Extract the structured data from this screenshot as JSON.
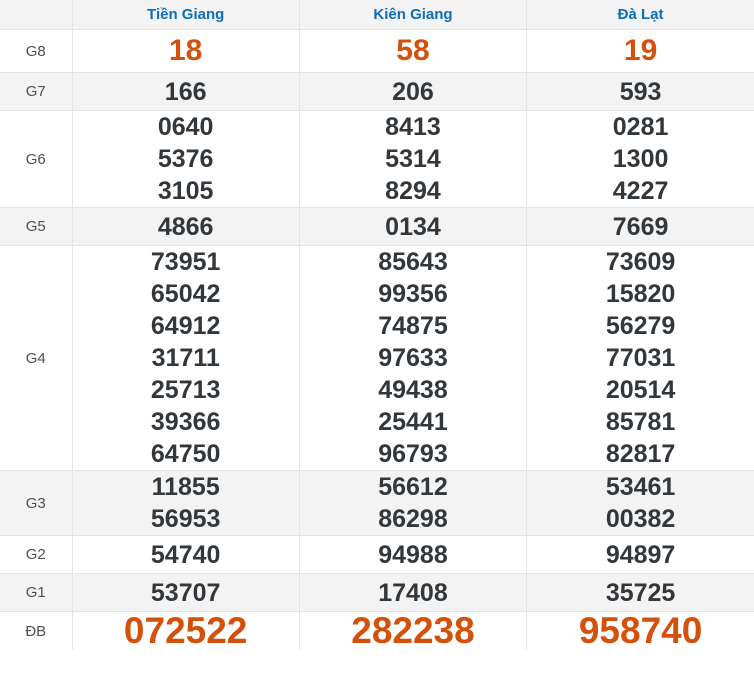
{
  "table": {
    "columns": [
      {
        "label": "Tiền Giang"
      },
      {
        "label": "Kiên Giang"
      },
      {
        "label": "Đà Lạt"
      }
    ],
    "rows": [
      {
        "label": "G8",
        "values": [
          [
            "18"
          ],
          [
            "58"
          ],
          [
            "19"
          ]
        ]
      },
      {
        "label": "G7",
        "values": [
          [
            "166"
          ],
          [
            "206"
          ],
          [
            "593"
          ]
        ]
      },
      {
        "label": "G6",
        "values": [
          [
            "0640",
            "5376",
            "3105"
          ],
          [
            "8413",
            "5314",
            "8294"
          ],
          [
            "0281",
            "1300",
            "4227"
          ]
        ]
      },
      {
        "label": "G5",
        "values": [
          [
            "4866"
          ],
          [
            "0134"
          ],
          [
            "7669"
          ]
        ]
      },
      {
        "label": "G4",
        "values": [
          [
            "73951",
            "65042",
            "64912",
            "31711",
            "25713",
            "39366",
            "64750"
          ],
          [
            "85643",
            "99356",
            "74875",
            "97633",
            "49438",
            "25441",
            "96793"
          ],
          [
            "73609",
            "15820",
            "56279",
            "77031",
            "20514",
            "85781",
            "82817"
          ]
        ]
      },
      {
        "label": "G3",
        "values": [
          [
            "11855",
            "56953"
          ],
          [
            "56612",
            "86298"
          ],
          [
            "53461",
            "00382"
          ]
        ]
      },
      {
        "label": "G2",
        "values": [
          [
            "54740"
          ],
          [
            "94988"
          ],
          [
            "94897"
          ]
        ]
      },
      {
        "label": "G1",
        "values": [
          [
            "53707"
          ],
          [
            "17408"
          ],
          [
            "35725"
          ]
        ]
      },
      {
        "label": "ĐB",
        "values": [
          [
            "072522"
          ],
          [
            "282238"
          ],
          [
            "958740"
          ]
        ]
      }
    ]
  },
  "colors": {
    "header_blue": "#0d6db8",
    "highlight_orange": "#d4510c",
    "number_dark": "#32373c",
    "label_gray": "#4f4f4f",
    "stripe_gray": "#f3f3f3",
    "border_gray": "#e4e4e4"
  }
}
